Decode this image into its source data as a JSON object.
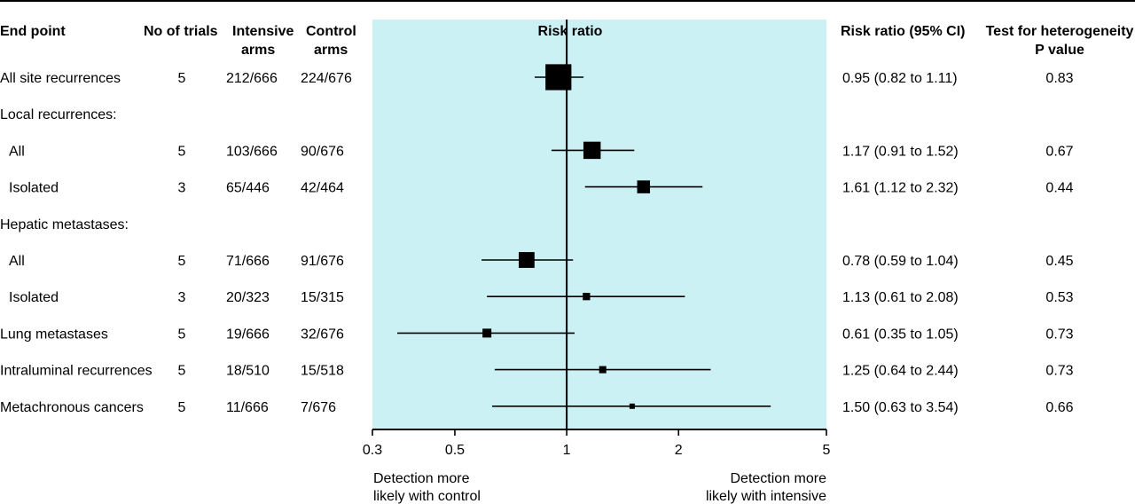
{
  "header": {
    "endpoint": "End point",
    "trials": "No of trials",
    "intensive": [
      "Intensive",
      "arms"
    ],
    "control": [
      "Control",
      "arms"
    ],
    "rr_title": "Risk ratio",
    "ci_title": "Risk ratio (95% CI)",
    "het": [
      "Test for heterogeneity",
      "P value"
    ]
  },
  "colors": {
    "panel": "#ccf1f5",
    "ink": "#000000"
  },
  "chart_data": {
    "type": "forest",
    "title": "Risk ratio",
    "x_scale": "log",
    "xlim": [
      0.3,
      5
    ],
    "ticks": [
      {
        "value": 0.3,
        "label": "0.3"
      },
      {
        "value": 0.5,
        "label": "0.5"
      },
      {
        "value": 1,
        "label": "1"
      },
      {
        "value": 2,
        "label": "2"
      },
      {
        "value": 5,
        "label": "5"
      }
    ],
    "reference_line": 1,
    "left_annotation": [
      "Detection more",
      "likely with control"
    ],
    "right_annotation": [
      "Detection more",
      "likely with intensive"
    ],
    "rows": [
      {
        "label": "All site recurrences",
        "trials": "5",
        "intensive": "212/666",
        "control": "224/676",
        "rr": 0.95,
        "lo": 0.82,
        "hi": 1.11,
        "ci_text": "0.95 (0.82 to 1.11)",
        "p": "0.83",
        "weight": 436
      },
      {
        "label": "Local recurrences:",
        "heading": true
      },
      {
        "label": "All",
        "indent": true,
        "trials": "5",
        "intensive": "103/666",
        "control": "90/676",
        "rr": 1.17,
        "lo": 0.91,
        "hi": 1.52,
        "ci_text": "1.17 (0.91 to 1.52)",
        "p": "0.67",
        "weight": 193
      },
      {
        "label": "Isolated",
        "indent": true,
        "trials": "3",
        "intensive": "65/446",
        "control": "42/464",
        "rr": 1.61,
        "lo": 1.12,
        "hi": 2.32,
        "ci_text": "1.61 (1.12 to 2.32)",
        "p": "0.44",
        "weight": 107
      },
      {
        "label": "Hepatic metastases:",
        "heading": true
      },
      {
        "label": "All",
        "indent": true,
        "trials": "5",
        "intensive": "71/666",
        "control": "91/676",
        "rr": 0.78,
        "lo": 0.59,
        "hi": 1.04,
        "ci_text": "0.78 (0.59 to 1.04)",
        "p": "0.45",
        "weight": 162
      },
      {
        "label": "Isolated",
        "indent": true,
        "trials": "3",
        "intensive": "20/323",
        "control": "15/315",
        "rr": 1.13,
        "lo": 0.61,
        "hi": 2.08,
        "ci_text": "1.13 (0.61 to 2.08)",
        "p": "0.53",
        "weight": 35
      },
      {
        "label": "Lung metastases",
        "trials": "5",
        "intensive": "19/666",
        "control": "32/676",
        "rr": 0.61,
        "lo": 0.35,
        "hi": 1.05,
        "ci_text": "0.61 (0.35 to 1.05)",
        "p": "0.73",
        "weight": 51
      },
      {
        "label": "Intraluminal recurrences",
        "trials": "5",
        "intensive": "18/510",
        "control": "15/518",
        "rr": 1.25,
        "lo": 0.64,
        "hi": 2.44,
        "ci_text": "1.25 (0.64 to 2.44)",
        "p": "0.73",
        "weight": 33
      },
      {
        "label": "Metachronous cancers",
        "trials": "5",
        "intensive": "11/666",
        "control": "7/676",
        "rr": 1.5,
        "lo": 0.63,
        "hi": 3.54,
        "ci_text": "1.50 (0.63 to 3.54)",
        "p": "0.66",
        "weight": 18
      }
    ]
  }
}
